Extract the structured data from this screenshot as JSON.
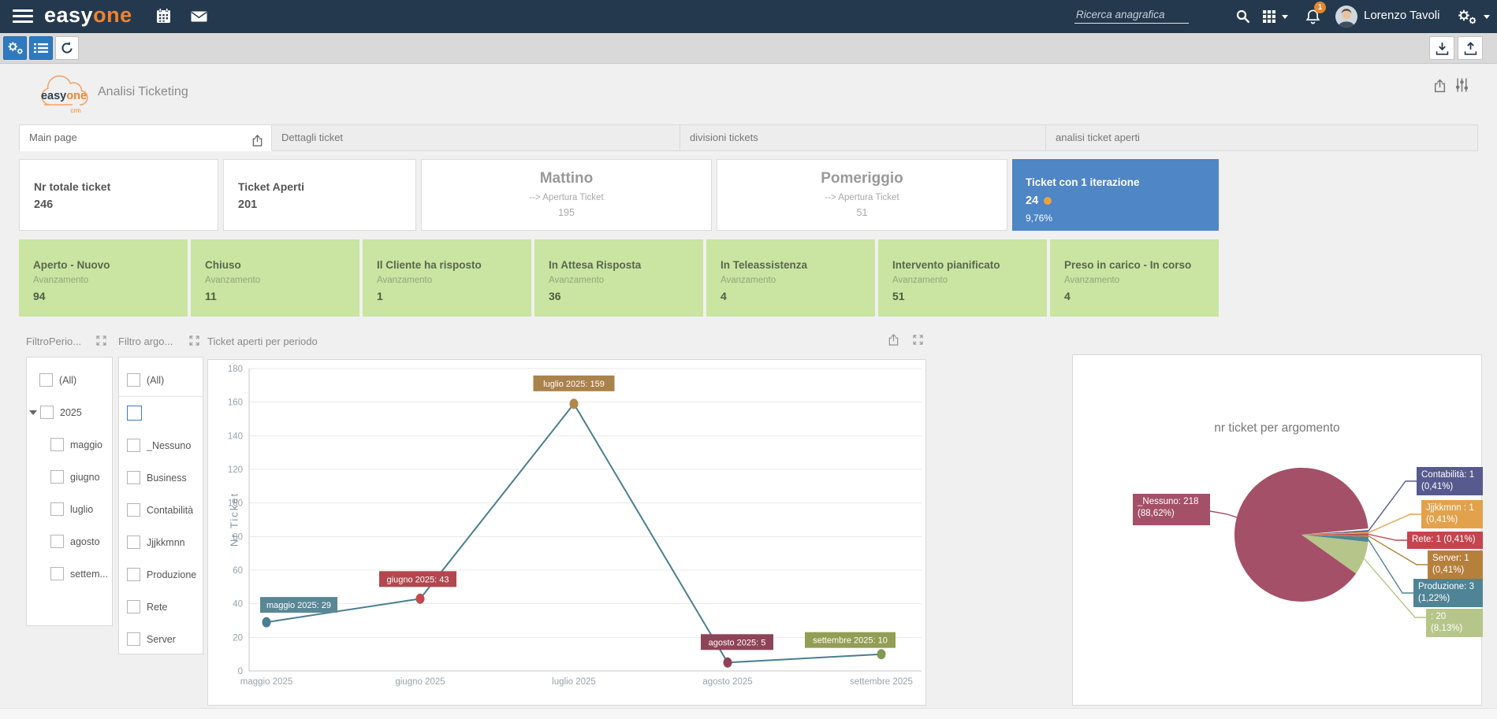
{
  "navbar": {
    "brand_easy": "easy",
    "brand_one": "one",
    "search_placeholder": "Ricerca anagrafica",
    "notification_count": "1",
    "user_name": "Lorenzo Tavoli"
  },
  "page": {
    "logo_easy": "easy",
    "logo_one": "one",
    "logo_crm": "crm",
    "title": "Analisi Ticketing"
  },
  "tabs": [
    {
      "label": "Main page",
      "active": true
    },
    {
      "label": "Dettagli ticket",
      "active": false
    },
    {
      "label": "divisioni tickets",
      "active": false
    },
    {
      "label": "analisi ticket aperti",
      "active": false
    }
  ],
  "kpi_cards": [
    {
      "title": "Nr totale ticket",
      "value": "246"
    },
    {
      "title": "Ticket Aperti",
      "value": "201"
    },
    {
      "title": "Mattino",
      "subtitle": "--> Apertura Ticket",
      "value": "195"
    },
    {
      "title": "Pomeriggio",
      "subtitle": "--> Apertura Ticket",
      "value": "51"
    },
    {
      "title": "Ticket con 1 iterazione",
      "value": "24",
      "percent": "9,76%",
      "accent_color": "#4e86c6",
      "dot_color": "#e8a33d"
    }
  ],
  "status_cards": [
    {
      "title": "Aperto - Nuovo",
      "label": "Avanzamento",
      "value": "94"
    },
    {
      "title": "Chiuso",
      "label": "Avanzamento",
      "value": "11"
    },
    {
      "title": "Il Cliente ha risposto",
      "label": "Avanzamento",
      "value": "1"
    },
    {
      "title": "In Attesa Risposta",
      "label": "Avanzamento",
      "value": "36"
    },
    {
      "title": "In Teleassistenza",
      "label": "Avanzamento",
      "value": "4"
    },
    {
      "title": "Intervento pianificato",
      "label": "Avanzamento",
      "value": "51"
    },
    {
      "title": "Preso in carico - In corso",
      "label": "Avanzamento",
      "value": "4"
    }
  ],
  "status_card_color": "#c9e5a1",
  "filters": {
    "period": {
      "title": "FiltroPerio...",
      "items": [
        {
          "label": "(All)",
          "level": 0
        },
        {
          "label": "2025",
          "level": 0,
          "expandable": true
        },
        {
          "label": "maggio",
          "level": 1
        },
        {
          "label": "giugno",
          "level": 1
        },
        {
          "label": "luglio",
          "level": 1
        },
        {
          "label": "agosto",
          "level": 1
        },
        {
          "label": "settem...",
          "level": 1
        }
      ]
    },
    "topic": {
      "title": "Filtro argo...",
      "items": [
        {
          "label": "(All)",
          "level": 0,
          "separator_below": true
        },
        {
          "label": "",
          "level": 0,
          "highlighted": true
        },
        {
          "label": "_Nessuno",
          "level": 0
        },
        {
          "label": "Business",
          "level": 0
        },
        {
          "label": "Contabilità",
          "level": 0
        },
        {
          "label": "Jjjkkmnn",
          "level": 0
        },
        {
          "label": "Produzione",
          "level": 0
        },
        {
          "label": "Rete",
          "level": 0
        },
        {
          "label": "Server",
          "level": 0
        }
      ]
    }
  },
  "chart_data": [
    {
      "type": "line",
      "title": "Ticket aperti per periodo",
      "x": [
        "maggio 2025",
        "giugno 2025",
        "luglio 2025",
        "agosto 2025",
        "settembre 2025"
      ],
      "values": [
        29,
        43,
        159,
        5,
        10
      ],
      "point_labels": [
        "maggio 2025: 29",
        "giugno 2025: 43",
        "luglio 2025: 159",
        "agosto 2025: 5",
        "settembre 2025: 10"
      ],
      "label_bg": [
        "#5a8795",
        "#b2474f",
        "#a9824c",
        "#8e4458",
        "#939e55"
      ],
      "point_colors": [
        "#4a7e90",
        "#c04a52",
        "#b08948",
        "#8e4458",
        "#7f9a52"
      ],
      "line_color": "#4a7e90",
      "xlabel": "",
      "ylabel": "Nr Ticket",
      "ylim": [
        0,
        180
      ],
      "ytick_step": 20,
      "grid": true,
      "legend": "none"
    },
    {
      "type": "pie",
      "title": "nr ticket per argomento",
      "slices": [
        {
          "label": "Contabilità: 1 (0,41%)",
          "name": "Contabilità",
          "value": 1,
          "pct": 0.41,
          "color": "#565a8e"
        },
        {
          "label": "Jjjkkmnn : 1 (0,41%)",
          "name": "Jjjkkmnn",
          "value": 1,
          "pct": 0.41,
          "color": "#e2a24b"
        },
        {
          "label": "Rete: 1 (0,41%)",
          "name": "Rete",
          "value": 1,
          "pct": 0.41,
          "color": "#c4454e"
        },
        {
          "label": "Server: 1 (0,41%)",
          "name": "Server",
          "value": 1,
          "pct": 0.41,
          "color": "#b5803c"
        },
        {
          "label": "Produzione: 3 (1,22%)",
          "name": "Produzione",
          "value": 3,
          "pct": 1.22,
          "color": "#4f8496"
        },
        {
          "label": ": 20 (8,13%)",
          "name": "",
          "value": 20,
          "pct": 8.13,
          "color": "#b6c589"
        },
        {
          "label": "_Nessuno: 218 (88,62%)",
          "name": "_Nessuno",
          "value": 218,
          "pct": 88.62,
          "color": "#a45069"
        }
      ],
      "legend": "callout-labels"
    }
  ],
  "icons": {
    "menu": "hamburger bars",
    "calendar": "calendar",
    "mail": "envelope",
    "search": "magnifier",
    "apps": "3x3 grid",
    "notifications": "bell",
    "settings": "gears",
    "parameters": "vertical sliders",
    "export": "box with up arrow",
    "maximize": "expand corner arrows",
    "refresh": "circular arrow",
    "download": "tray with down arrow",
    "upload": "tray with up arrow"
  }
}
